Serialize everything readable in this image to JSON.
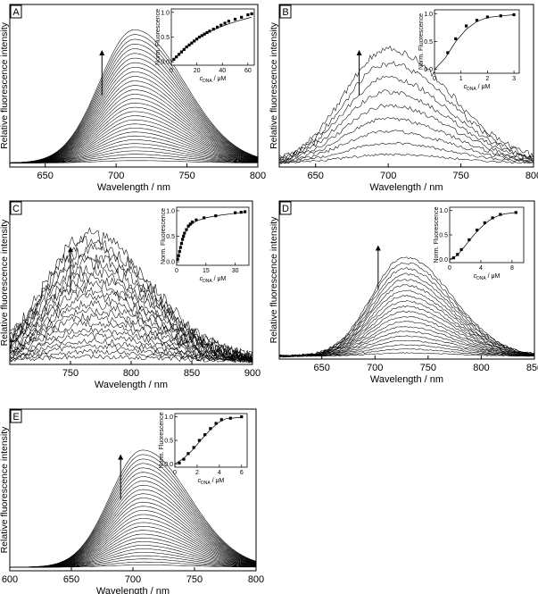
{
  "figure_ylabel": "Relative fluorescence intensity",
  "chart_data": [
    {
      "panel": "A",
      "type": "line",
      "xlabel": "Wavelength / nm",
      "ylabel": "Relative fluorescence intensity",
      "xlim": [
        625,
        800
      ],
      "xticks": [
        650,
        700,
        750,
        800
      ],
      "peak_x": 713,
      "width": 26,
      "num_traces": 32,
      "noise": 0.0,
      "ylim": [
        0,
        1.22
      ],
      "arrow_x": 690,
      "inset": {
        "type": "scatter",
        "ylabel": "Norm. Fluorescence",
        "xlabel_main": "c",
        "xlabel_sub": "DNA",
        "xlabel_unit": " / μM",
        "xlim": [
          0,
          65
        ],
        "xticks": [
          0,
          20,
          40,
          60
        ],
        "ylim": [
          0,
          1.0
        ],
        "yticks": [
          0.0,
          0.5,
          1.0
        ],
        "points": [
          [
            2,
            0.05
          ],
          [
            4,
            0.1
          ],
          [
            6,
            0.15
          ],
          [
            8,
            0.2
          ],
          [
            10,
            0.25
          ],
          [
            12,
            0.3
          ],
          [
            14,
            0.34
          ],
          [
            16,
            0.38
          ],
          [
            18,
            0.42
          ],
          [
            20,
            0.46
          ],
          [
            22,
            0.5
          ],
          [
            24,
            0.53
          ],
          [
            26,
            0.56
          ],
          [
            28,
            0.59
          ],
          [
            30,
            0.62
          ],
          [
            33,
            0.66
          ],
          [
            36,
            0.7
          ],
          [
            39,
            0.74
          ],
          [
            42,
            0.78
          ],
          [
            45,
            0.82
          ],
          [
            50,
            0.86
          ],
          [
            55,
            0.9
          ],
          [
            60,
            0.95
          ],
          [
            63,
            0.97
          ]
        ],
        "fit": [
          [
            0,
            0
          ],
          [
            10,
            0.26
          ],
          [
            20,
            0.46
          ],
          [
            30,
            0.61
          ],
          [
            40,
            0.72
          ],
          [
            50,
            0.81
          ],
          [
            60,
            0.88
          ],
          [
            63,
            0.9
          ]
        ]
      }
    },
    {
      "panel": "B",
      "type": "line",
      "xlabel": "Wavelength / nm",
      "ylabel": "Relative fluorescence intensity",
      "xlim": [
        625,
        800
      ],
      "xticks": [
        650,
        700,
        750,
        800
      ],
      "peak_x": 700,
      "width": 32,
      "num_traces": 9,
      "noise": 0.02,
      "ylim": [
        0,
        1.42
      ],
      "arrow_x": 680,
      "inset": {
        "type": "scatter",
        "ylabel": "Norm. Fluorescence",
        "xlabel_main": "c",
        "xlabel_sub": "DNA",
        "xlabel_unit": " / μM",
        "xlim": [
          0,
          3.2
        ],
        "xticks": [
          0,
          1,
          2,
          3
        ],
        "ylim": [
          0,
          1.0
        ],
        "yticks": [
          0.0,
          0.5,
          1.0
        ],
        "points": [
          [
            0.5,
            0.3
          ],
          [
            0.8,
            0.55
          ],
          [
            1.2,
            0.78
          ],
          [
            1.6,
            0.88
          ],
          [
            2.0,
            0.94
          ],
          [
            2.5,
            0.96
          ],
          [
            3.0,
            0.98
          ]
        ],
        "fit": [
          [
            0,
            0
          ],
          [
            0.4,
            0.2
          ],
          [
            0.8,
            0.5
          ],
          [
            1.2,
            0.72
          ],
          [
            1.6,
            0.86
          ],
          [
            2.0,
            0.93
          ],
          [
            2.5,
            0.96
          ],
          [
            3.0,
            0.98
          ]
        ]
      }
    },
    {
      "panel": "C",
      "type": "line",
      "xlabel": "Wavelength / nm",
      "ylabel": "Relative fluorescence intensity",
      "xlim": [
        700,
        900
      ],
      "xticks": [
        750,
        800,
        850,
        900
      ],
      "peak_x": 765,
      "width": 38,
      "num_traces": 20,
      "noise": 0.04,
      "ylim": [
        0,
        1.3
      ],
      "arrow_x": 750,
      "inset": {
        "type": "scatter",
        "ylabel": "Norm. Fluorescence",
        "xlabel_main": "c",
        "xlabel_sub": "DNA",
        "xlabel_unit": " / μM",
        "xlim": [
          0,
          37
        ],
        "xticks": [
          0,
          15,
          30
        ],
        "ylim": [
          0,
          1.0
        ],
        "yticks": [
          0.0,
          0.5,
          1.0
        ],
        "points": [
          [
            0.5,
            0.05
          ],
          [
            1,
            0.12
          ],
          [
            1.5,
            0.2
          ],
          [
            2,
            0.28
          ],
          [
            2.5,
            0.36
          ],
          [
            3,
            0.44
          ],
          [
            3.5,
            0.5
          ],
          [
            4,
            0.56
          ],
          [
            5,
            0.63
          ],
          [
            6,
            0.7
          ],
          [
            7,
            0.74
          ],
          [
            8,
            0.78
          ],
          [
            10,
            0.82
          ],
          [
            14,
            0.86
          ],
          [
            20,
            0.9
          ],
          [
            30,
            0.96
          ],
          [
            33,
            0.97
          ],
          [
            35,
            0.98
          ]
        ],
        "fit": [
          [
            0,
            0
          ],
          [
            2,
            0.3
          ],
          [
            4,
            0.55
          ],
          [
            6,
            0.68
          ],
          [
            10,
            0.8
          ],
          [
            15,
            0.86
          ],
          [
            20,
            0.9
          ],
          [
            30,
            0.95
          ],
          [
            35,
            0.97
          ]
        ]
      }
    },
    {
      "panel": "D",
      "type": "line",
      "xlabel": "Wavelength / nm",
      "ylabel": "Relative fluorescence intensity",
      "xlim": [
        610,
        850
      ],
      "xticks": [
        650,
        700,
        750,
        800,
        850
      ],
      "peak_x": 728,
      "width": 33,
      "num_traces": 20,
      "noise": 0.01,
      "ylim": [
        0,
        1.6
      ],
      "arrow_x": 703,
      "inset": {
        "type": "scatter",
        "ylabel": "Norm. Fluorescence",
        "xlabel_main": "c",
        "xlabel_sub": "DNA",
        "xlabel_unit": " / μM",
        "xlim": [
          0,
          9.5
        ],
        "xticks": [
          0,
          4,
          8
        ],
        "ylim": [
          0,
          1.0
        ],
        "yticks": [
          0.0,
          0.5,
          1.0
        ],
        "points": [
          [
            0.5,
            0.03
          ],
          [
            1,
            0.1
          ],
          [
            1.5,
            0.2
          ],
          [
            2.5,
            0.4
          ],
          [
            3.5,
            0.6
          ],
          [
            4.5,
            0.75
          ],
          [
            5.5,
            0.85
          ],
          [
            6.5,
            0.92
          ],
          [
            8.5,
            0.96
          ]
        ],
        "fit": [
          [
            0,
            0
          ],
          [
            1,
            0.08
          ],
          [
            2,
            0.28
          ],
          [
            3,
            0.48
          ],
          [
            4,
            0.65
          ],
          [
            5,
            0.79
          ],
          [
            6,
            0.88
          ],
          [
            7,
            0.93
          ],
          [
            8.5,
            0.96
          ]
        ]
      }
    },
    {
      "panel": "E",
      "type": "line",
      "xlabel": "Wavelength / nm",
      "ylabel": "Relative fluorescence intensity",
      "xlim": [
        600,
        800
      ],
      "xticks": [
        600,
        650,
        700,
        750,
        800
      ],
      "peak_x": 708,
      "width": 28,
      "num_traces": 30,
      "noise": 0.0,
      "ylim": [
        0,
        1.38
      ],
      "arrow_x": 690,
      "inset": {
        "type": "scatter",
        "ylabel": "Norm. Fluorescence",
        "xlabel_main": "c",
        "xlabel_sub": "DNA",
        "xlabel_unit": " / μM",
        "xlim": [
          0,
          6.5
        ],
        "xticks": [
          0,
          2,
          4,
          6
        ],
        "ylim": [
          0,
          1.0
        ],
        "yticks": [
          0.0,
          0.5,
          1.0
        ],
        "points": [
          [
            0.4,
            0.02
          ],
          [
            0.8,
            0.1
          ],
          [
            1.2,
            0.22
          ],
          [
            1.7,
            0.35
          ],
          [
            2.2,
            0.5
          ],
          [
            2.7,
            0.62
          ],
          [
            3.2,
            0.75
          ],
          [
            3.7,
            0.86
          ],
          [
            4.2,
            0.94
          ],
          [
            5.0,
            0.97
          ],
          [
            6.0,
            1.0
          ]
        ],
        "fit": [
          [
            0,
            0
          ],
          [
            0.8,
            0.12
          ],
          [
            1.6,
            0.3
          ],
          [
            2.4,
            0.52
          ],
          [
            3.2,
            0.73
          ],
          [
            4.0,
            0.89
          ],
          [
            4.6,
            0.96
          ],
          [
            6.0,
            0.99
          ]
        ]
      }
    }
  ]
}
